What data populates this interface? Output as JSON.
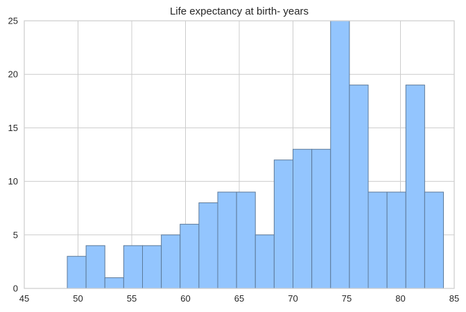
{
  "chart_data": {
    "type": "bar",
    "title": "Life expectancy at birth- years",
    "xlabel": "",
    "ylabel": "",
    "xlim": [
      45,
      85
    ],
    "ylim": [
      0,
      25
    ],
    "xticks": [
      45,
      50,
      55,
      60,
      65,
      70,
      75,
      80,
      85
    ],
    "yticks": [
      0,
      5,
      10,
      15,
      20,
      25
    ],
    "grid": true,
    "bin_edges": [
      49.0,
      50.75,
      52.5,
      54.25,
      56.0,
      57.75,
      59.5,
      61.25,
      63.0,
      64.75,
      66.5,
      68.25,
      70.0,
      71.75,
      73.5,
      75.25,
      77.0,
      78.75,
      80.5,
      82.25,
      84.0
    ],
    "values": [
      3,
      4,
      1,
      4,
      4,
      5,
      6,
      8,
      9,
      9,
      5,
      12,
      13,
      13,
      25,
      19,
      9,
      9,
      19,
      9
    ],
    "colors": {
      "bar_fill": "#93c5fe",
      "bar_edge": "#5d7a99",
      "grid": "#cccccc",
      "axes": "#cccccc",
      "text": "#262626"
    }
  }
}
